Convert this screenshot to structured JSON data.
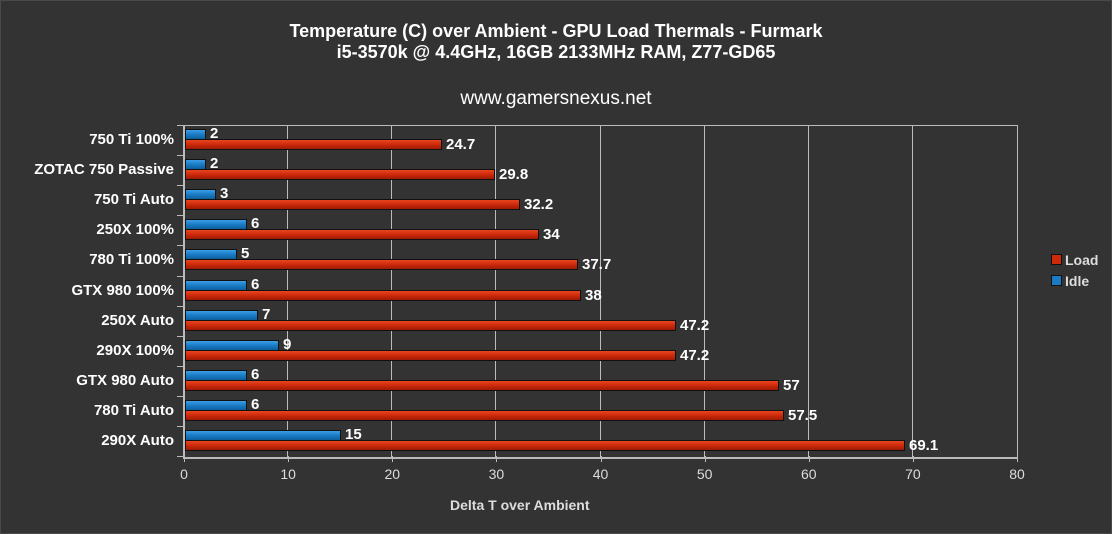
{
  "header": {
    "title_line1": "Temperature (C) over Ambient - GPU Load Thermals - Furmark",
    "title_line2": "i5-3570k @ 4.4GHz, 16GB 2133MHz RAM, Z77-GD65",
    "website": "www.gamersnexus.net"
  },
  "axis": {
    "x_title": "Delta T over Ambient",
    "x_ticks": [
      "0",
      "10",
      "20",
      "30",
      "40",
      "50",
      "60",
      "70",
      "80"
    ]
  },
  "legend": {
    "items": [
      {
        "label": "Load",
        "color": "#cc2a0a"
      },
      {
        "label": "Idle",
        "color": "#1a7bc4"
      }
    ]
  },
  "rows": [
    {
      "name": "750 Ti 100%",
      "idle": "2",
      "load": "24.7"
    },
    {
      "name": "ZOTAC 750 Passive",
      "idle": "2",
      "load": "29.8"
    },
    {
      "name": "750 Ti Auto",
      "idle": "3",
      "load": "32.2"
    },
    {
      "name": "250X 100%",
      "idle": "6",
      "load": "34"
    },
    {
      "name": "780 Ti 100%",
      "idle": "5",
      "load": "37.7"
    },
    {
      "name": "GTX 980 100%",
      "idle": "6",
      "load": "38"
    },
    {
      "name": "250X Auto",
      "idle": "7",
      "load": "47.2"
    },
    {
      "name": "290X 100%",
      "idle": "9",
      "load": "47.2"
    },
    {
      "name": "GTX 980 Auto",
      "idle": "6",
      "load": "57"
    },
    {
      "name": "780 Ti Auto",
      "idle": "6",
      "load": "57.5"
    },
    {
      "name": "290X Auto",
      "idle": "15",
      "load": "69.1"
    }
  ],
  "chart_data": {
    "type": "bar",
    "orientation": "horizontal",
    "title": "Temperature (C) over Ambient - GPU Load Thermals - Furmark",
    "subtitle": "i5-3570k @ 4.4GHz, 16GB 2133MHz RAM, Z77-GD65",
    "annotation": "www.gamersnexus.net",
    "categories": [
      "750 Ti 100%",
      "ZOTAC 750 Passive",
      "750 Ti Auto",
      "250X 100%",
      "780 Ti 100%",
      "GTX 980 100%",
      "250X Auto",
      "290X 100%",
      "GTX 980 Auto",
      "780 Ti Auto",
      "290X Auto"
    ],
    "series": [
      {
        "name": "Idle",
        "color": "#1a7bc4",
        "values": [
          2,
          2,
          3,
          6,
          5,
          6,
          7,
          9,
          6,
          6,
          15
        ]
      },
      {
        "name": "Load",
        "color": "#cc2a0a",
        "values": [
          24.7,
          29.8,
          32.2,
          34,
          37.7,
          38,
          47.2,
          47.2,
          57,
          57.5,
          69.1
        ]
      }
    ],
    "xlabel": "Delta T over Ambient",
    "ylabel": "",
    "xlim": [
      0,
      80
    ],
    "x_ticks": [
      0,
      10,
      20,
      30,
      40,
      50,
      60,
      70,
      80
    ],
    "grid": "vertical",
    "legend_position": "right"
  }
}
